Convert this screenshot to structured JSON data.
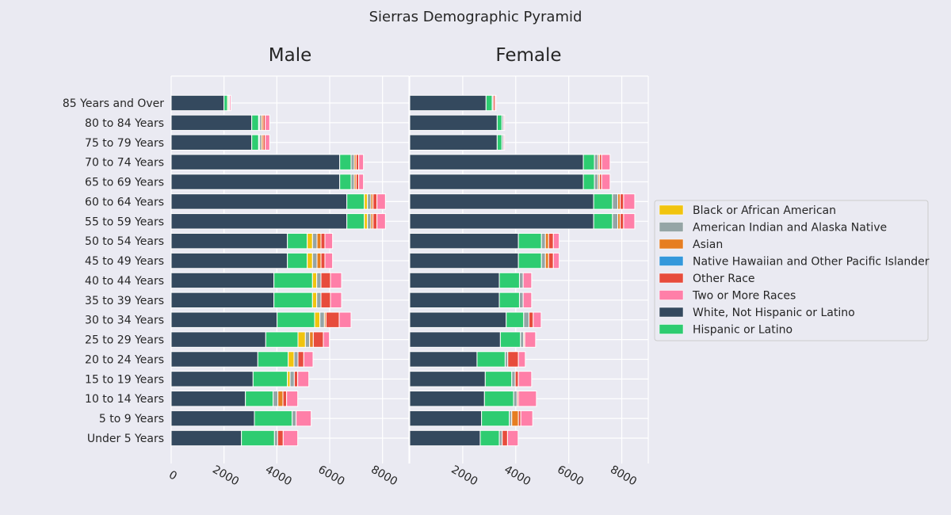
{
  "chart_data": {
    "type": "bar",
    "orientation": "horizontal",
    "stacked": true,
    "title": "Sierras Demographic Pyramid",
    "panels": [
      "Male",
      "Female"
    ],
    "xlim": [
      0,
      9000
    ],
    "xticks": [
      0,
      2000,
      4000,
      6000,
      8000
    ],
    "grid": true,
    "legend_position": "right",
    "categories": [
      "Under 5 Years",
      "5 to 9 Years",
      "10 to 14 Years",
      "15 to 19 Years",
      "20 to 24 Years",
      "25 to 29 Years",
      "30 to 34 Years",
      "35 to 39 Years",
      "40 to 44 Years",
      "45 to 49 Years",
      "50 to 54 Years",
      "55 to 59 Years",
      "60 to 64 Years",
      "65 to 69 Years",
      "70 to 74 Years",
      "75 to 79 Years",
      "80 to 84 Years",
      "85 Years and Over"
    ],
    "series": [
      {
        "name": "White, Not Hispanic or Latino",
        "color": "#34495e",
        "male": [
          2660,
          3150,
          2810,
          3100,
          3280,
          3580,
          4010,
          3890,
          3890,
          4400,
          4400,
          6650,
          6650,
          6380,
          6380,
          3050,
          3050,
          2000
        ],
        "female": [
          2660,
          2710,
          2820,
          2850,
          2540,
          3420,
          3640,
          3380,
          3380,
          4100,
          4100,
          6940,
          6940,
          6550,
          6550,
          3300,
          3300,
          2880
        ]
      },
      {
        "name": "Hispanic or Latino",
        "color": "#2ecc71",
        "male": [
          1250,
          1430,
          1050,
          1300,
          1150,
          1220,
          1420,
          1460,
          1460,
          750,
          750,
          660,
          660,
          430,
          430,
          260,
          260,
          130
        ],
        "female": [
          720,
          1050,
          1100,
          1000,
          1060,
          760,
          660,
          760,
          760,
          870,
          870,
          710,
          710,
          420,
          420,
          180,
          180,
          230
        ]
      },
      {
        "name": "Black or African American",
        "color": "#f1c40f",
        "male": [
          0,
          0,
          0,
          100,
          220,
          280,
          200,
          160,
          160,
          200,
          200,
          120,
          120,
          0,
          0,
          30,
          30,
          40
        ],
        "female": [
          0,
          0,
          0,
          0,
          0,
          0,
          0,
          0,
          0,
          0,
          0,
          0,
          0,
          0,
          0,
          0,
          0,
          0
        ]
      },
      {
        "name": "American Indian and Alaska Native",
        "color": "#95a5a6",
        "male": [
          120,
          150,
          180,
          160,
          150,
          160,
          170,
          160,
          160,
          170,
          170,
          130,
          130,
          120,
          120,
          80,
          80,
          40
        ],
        "female": [
          110,
          90,
          130,
          130,
          100,
          120,
          200,
          140,
          140,
          150,
          150,
          200,
          200,
          140,
          140,
          60,
          60,
          40
        ]
      },
      {
        "name": "Asian",
        "color": "#e67e22",
        "male": [
          0,
          0,
          190,
          0,
          0,
          140,
          60,
          0,
          0,
          150,
          150,
          80,
          80,
          70,
          70,
          60,
          60,
          0
        ],
        "female": [
          0,
          250,
          0,
          0,
          0,
          40,
          0,
          0,
          0,
          120,
          120,
          90,
          90,
          50,
          50,
          0,
          0,
          0
        ]
      },
      {
        "name": "Native Hawaiian and Other Pacific Islander",
        "color": "#3498db",
        "male": [
          0,
          0,
          0,
          0,
          0,
          0,
          0,
          0,
          0,
          0,
          0,
          0,
          0,
          0,
          0,
          0,
          0,
          0
        ],
        "female": [
          0,
          0,
          0,
          0,
          0,
          0,
          0,
          0,
          0,
          0,
          0,
          0,
          0,
          0,
          0,
          0,
          0,
          0
        ]
      },
      {
        "name": "Other Race",
        "color": "#e74c3c",
        "male": [
          210,
          0,
          140,
          130,
          220,
          380,
          500,
          360,
          360,
          150,
          150,
          150,
          150,
          100,
          100,
          80,
          80,
          0
        ],
        "female": [
          200,
          90,
          50,
          120,
          400,
          0,
          160,
          0,
          0,
          180,
          180,
          130,
          130,
          80,
          80,
          0,
          0,
          70
        ]
      },
      {
        "name": "Two or More Races",
        "color": "#ff7fa8",
        "male": [
          550,
          570,
          420,
          420,
          350,
          230,
          450,
          420,
          420,
          290,
          290,
          320,
          320,
          180,
          180,
          170,
          170,
          50
        ],
        "female": [
          400,
          450,
          680,
          500,
          260,
          410,
          300,
          320,
          320,
          220,
          220,
          420,
          420,
          320,
          320,
          40,
          40,
          40
        ]
      }
    ],
    "legend_order": [
      "Black or African American",
      "American Indian and Alaska Native",
      "Asian",
      "Native Hawaiian and Other Pacific Islander",
      "Other Race",
      "Two or More Races",
      "White, Not Hispanic or Latino",
      "Hispanic or Latino"
    ]
  }
}
